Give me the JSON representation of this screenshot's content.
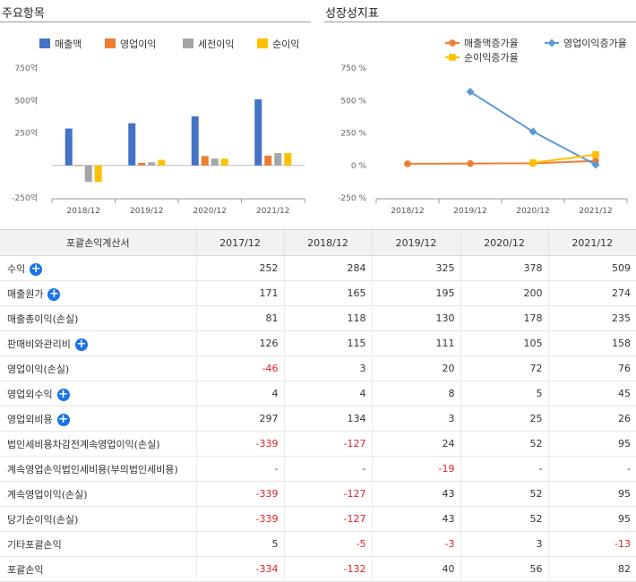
{
  "left_panel": {
    "title": "주요항목"
  },
  "right_panel": {
    "title": "성장성지표"
  },
  "chart_data": [
    {
      "type": "bar",
      "categories": [
        "2018/12",
        "2019/12",
        "2020/12",
        "2021/12"
      ],
      "series": [
        {
          "name": "매출액",
          "values": [
            284,
            325,
            378,
            509
          ],
          "color": "#4472c4"
        },
        {
          "name": "영업이익",
          "values": [
            3,
            20,
            72,
            76
          ],
          "color": "#ed7d31"
        },
        {
          "name": "세전이익",
          "values": [
            -127,
            24,
            52,
            95
          ],
          "color": "#a5a5a5"
        },
        {
          "name": "순이익",
          "values": [
            -127,
            43,
            52,
            95
          ],
          "color": "#ffc000"
        }
      ],
      "yticks": [
        "750억",
        "500억",
        "250억",
        "",
        "-250억"
      ],
      "ytick_values": [
        750,
        500,
        250,
        0,
        -250
      ],
      "ylim": [
        -250,
        750
      ],
      "legend": "top",
      "grid": false
    },
    {
      "type": "line",
      "categories": [
        "2018/12",
        "2019/12",
        "2020/12",
        "2021/12"
      ],
      "series": [
        {
          "name": "매출액증가율",
          "values": [
            12.7,
            14.4,
            16.3,
            34.7
          ],
          "color": "#ed7d31",
          "marker": "circle"
        },
        {
          "name": "영업이익증가율",
          "values": [
            null,
            567,
            260,
            5.6
          ],
          "color": "#5b9bd5",
          "marker": "diamond"
        },
        {
          "name": "순이익증가율",
          "values": [
            null,
            null,
            20.9,
            82.7
          ],
          "color": "#ffc000",
          "marker": "square"
        }
      ],
      "yticks": [
        "750 %",
        "500 %",
        "250 %",
        "0 %",
        "-250 %"
      ],
      "ytick_values": [
        750,
        500,
        250,
        0,
        -250
      ],
      "ylim": [
        -250,
        750
      ],
      "legend": "top",
      "grid": false
    }
  ],
  "table": {
    "header": [
      "포괄손익계산서",
      "2017/12",
      "2018/12",
      "2019/12",
      "2020/12",
      "2021/12"
    ],
    "rows": [
      {
        "label": "수익",
        "expand": true,
        "values": [
          "252",
          "284",
          "325",
          "378",
          "509"
        ]
      },
      {
        "label": "매출원가",
        "expand": true,
        "values": [
          "171",
          "165",
          "195",
          "200",
          "274"
        ]
      },
      {
        "label": "매출총이익(손실)",
        "expand": false,
        "values": [
          "81",
          "118",
          "130",
          "178",
          "235"
        ]
      },
      {
        "label": "판매비와관리비",
        "expand": true,
        "values": [
          "126",
          "115",
          "111",
          "105",
          "158"
        ]
      },
      {
        "label": "영업이익(손실)",
        "expand": false,
        "values": [
          "-46",
          "3",
          "20",
          "72",
          "76"
        ]
      },
      {
        "label": "영업외수익",
        "expand": true,
        "values": [
          "4",
          "4",
          "8",
          "5",
          "45"
        ]
      },
      {
        "label": "영업외비용",
        "expand": true,
        "values": [
          "297",
          "134",
          "3",
          "25",
          "26"
        ]
      },
      {
        "label": "법인세비용차감전계속영업이익(손실)",
        "expand": false,
        "values": [
          "-339",
          "-127",
          "24",
          "52",
          "95"
        ]
      },
      {
        "label": "계속영업손익법인세비용(부의법인세비용)",
        "expand": false,
        "values": [
          "-",
          "-",
          "-19",
          "-",
          "-"
        ]
      },
      {
        "label": "계속영업이익(손실)",
        "expand": false,
        "values": [
          "-339",
          "-127",
          "43",
          "52",
          "95"
        ]
      },
      {
        "label": "당기순이익(손실)",
        "expand": false,
        "values": [
          "-339",
          "-127",
          "43",
          "52",
          "95"
        ]
      },
      {
        "label": "기타포괄손익",
        "expand": false,
        "values": [
          "5",
          "-5",
          "-3",
          "3",
          "-13"
        ]
      },
      {
        "label": "포괄손익",
        "expand": false,
        "values": [
          "-334",
          "-132",
          "40",
          "56",
          "82"
        ]
      }
    ]
  }
}
